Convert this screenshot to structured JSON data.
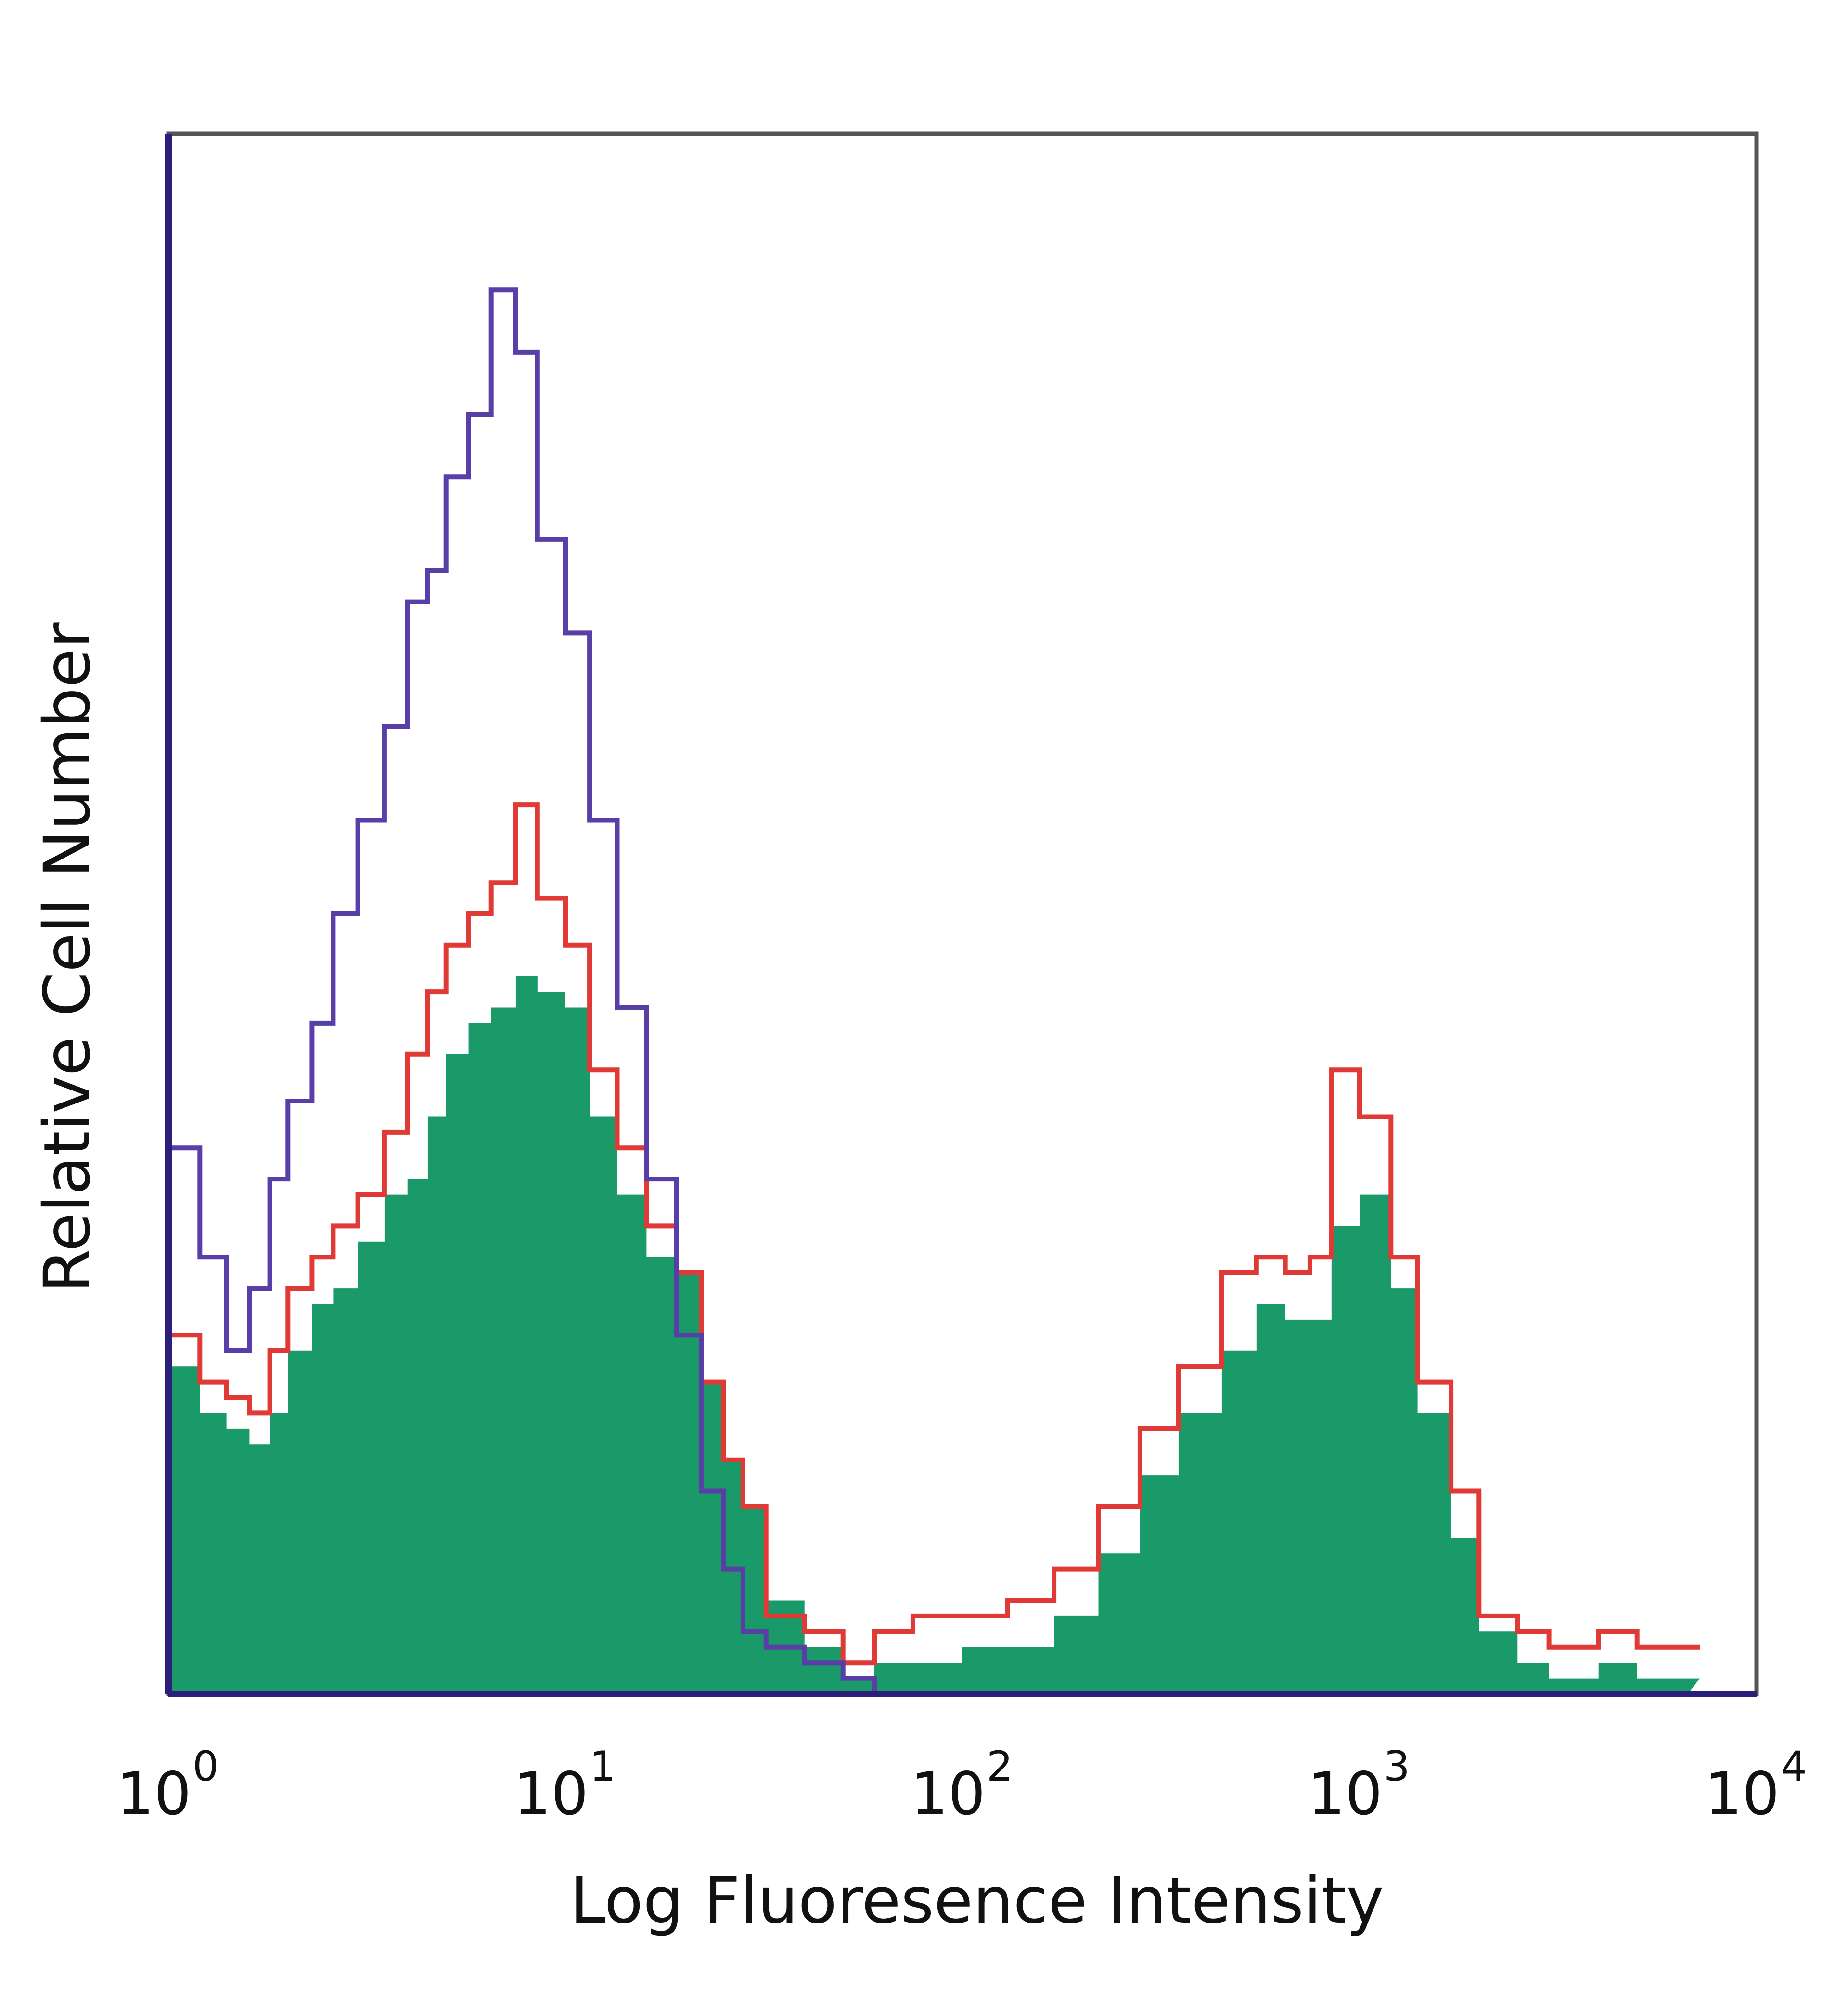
{
  "chart_data": {
    "type": "area",
    "title": "",
    "xlabel": "Log Fluoresence Intensity",
    "ylabel": "Relative Cell Number",
    "x_scale": "log",
    "xlim": [
      1,
      10000
    ],
    "ylim": [
      0,
      100
    ],
    "grid": false,
    "legend": "none",
    "x_ticks": [
      {
        "value": 1,
        "base": "10",
        "exp": "0"
      },
      {
        "value": 10,
        "base": "10",
        "exp": "1"
      },
      {
        "value": 100,
        "base": "10",
        "exp": "2"
      },
      {
        "value": 1000,
        "base": "10",
        "exp": "3"
      },
      {
        "value": 10000,
        "base": "10",
        "exp": "4"
      }
    ],
    "x": [
      1.0,
      1.2,
      1.4,
      1.6,
      1.8,
      2.0,
      2.3,
      2.6,
      3.0,
      3.5,
      4.0,
      4.5,
      5.0,
      5.7,
      6.5,
      7.5,
      8.5,
      10.0,
      11.5,
      13.5,
      16.0,
      19.0,
      22.0,
      25.0,
      28.0,
      32.0,
      40.0,
      50.0,
      60.0,
      75.0,
      100.0,
      130.0,
      170.0,
      220.0,
      280.0,
      350.0,
      450.0,
      550.0,
      650.0,
      750.0,
      850.0,
      1000.0,
      1200.0,
      1400.0,
      1700.0,
      2000.0,
      2500.0,
      3000.0,
      4000.0,
      5000.0,
      6000.0
    ],
    "series": [
      {
        "role": "filled",
        "color": "#1a9a68",
        "values": [
          21,
          18,
          17,
          16,
          18,
          22,
          25,
          26,
          29,
          32,
          33,
          37,
          41,
          43,
          44,
          46,
          45,
          44,
          37,
          32,
          28,
          27,
          20,
          15,
          12,
          6,
          3,
          1,
          2,
          2,
          3,
          3,
          5,
          9,
          14,
          18,
          22,
          25,
          24,
          24,
          30,
          32,
          26,
          18,
          10,
          4,
          2,
          1,
          2,
          1,
          1
        ]
      },
      {
        "role": "outline",
        "color": "#e03a36",
        "values": [
          23,
          20,
          19,
          18,
          22,
          26,
          28,
          30,
          32,
          36,
          41,
          45,
          48,
          50,
          52,
          57,
          51,
          48,
          40,
          35,
          30,
          27,
          20,
          15,
          12,
          5,
          4,
          2,
          4,
          5,
          5,
          6,
          8,
          12,
          17,
          21,
          27,
          28,
          27,
          28,
          40,
          37,
          28,
          20,
          13,
          5,
          4,
          3,
          4,
          3,
          3
        ]
      },
      {
        "role": "outline",
        "color": "#5a3ea8",
        "values": [
          35,
          28,
          22,
          26,
          33,
          38,
          43,
          50,
          56,
          62,
          70,
          72,
          78,
          82,
          90,
          86,
          74,
          68,
          56,
          44,
          33,
          23,
          13,
          8,
          4,
          3,
          2,
          1,
          0,
          0,
          0,
          0,
          0,
          0,
          0,
          0,
          0,
          0,
          0,
          0,
          0,
          0,
          0,
          0,
          0,
          0,
          0,
          0,
          0,
          0,
          0
        ]
      }
    ]
  }
}
